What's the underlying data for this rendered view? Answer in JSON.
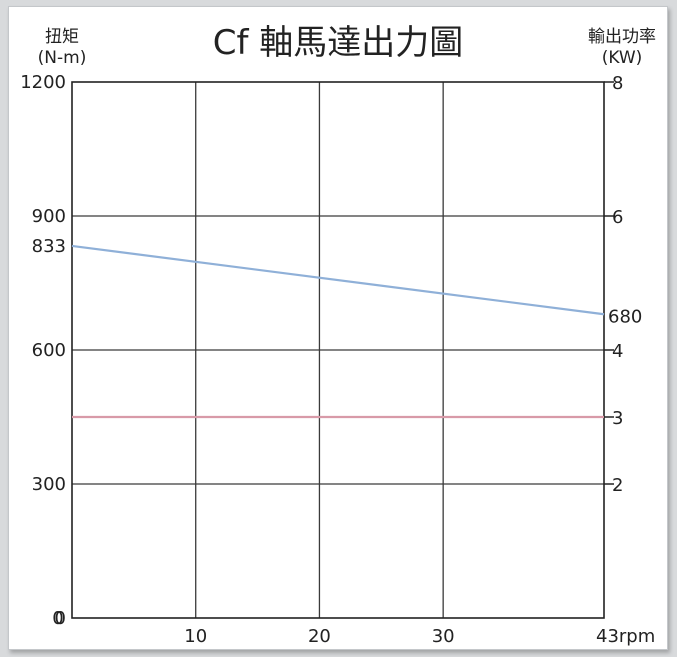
{
  "chart_data": {
    "type": "line",
    "title": "Cf 軸馬達出力圖",
    "y_left_label": "扭矩",
    "y_left_unit": "(N-m)",
    "y_right_label": "輸出功率",
    "y_right_unit": "(KW)",
    "x_unit": "rpm",
    "xlim": [
      0,
      43
    ],
    "y_left_lim": [
      0,
      1200
    ],
    "y_right_lim": [
      0,
      8
    ],
    "x_ticks": [
      0,
      10,
      20,
      30,
      43
    ],
    "x_tick_labels": [
      "0",
      "10",
      "20",
      "30",
      "43rpm"
    ],
    "y_left_ticks": [
      0,
      300,
      600,
      900,
      1200
    ],
    "y_left_tick_labels": [
      "0",
      "300",
      "600",
      "900",
      "1200"
    ],
    "y_left_extra_labels": [
      {
        "value": 833,
        "label": "833"
      }
    ],
    "y_right_ticks": [
      2,
      4,
      6,
      8
    ],
    "y_right_tick_labels": [
      "2",
      "4",
      "6",
      "8"
    ],
    "y_right_extra_ticks": [
      {
        "value": 3,
        "label": "3"
      }
    ],
    "y_right_annotation": {
      "y_left_value": 680,
      "label": "680"
    },
    "series": [
      {
        "axis": "left",
        "x": [
          0,
          43
        ],
        "y": [
          833,
          680
        ],
        "color": "#8fb0d8"
      },
      {
        "axis": "right",
        "x": [
          0,
          43
        ],
        "y": [
          3,
          3
        ],
        "color": "#d89aa8"
      }
    ],
    "grid": true
  }
}
